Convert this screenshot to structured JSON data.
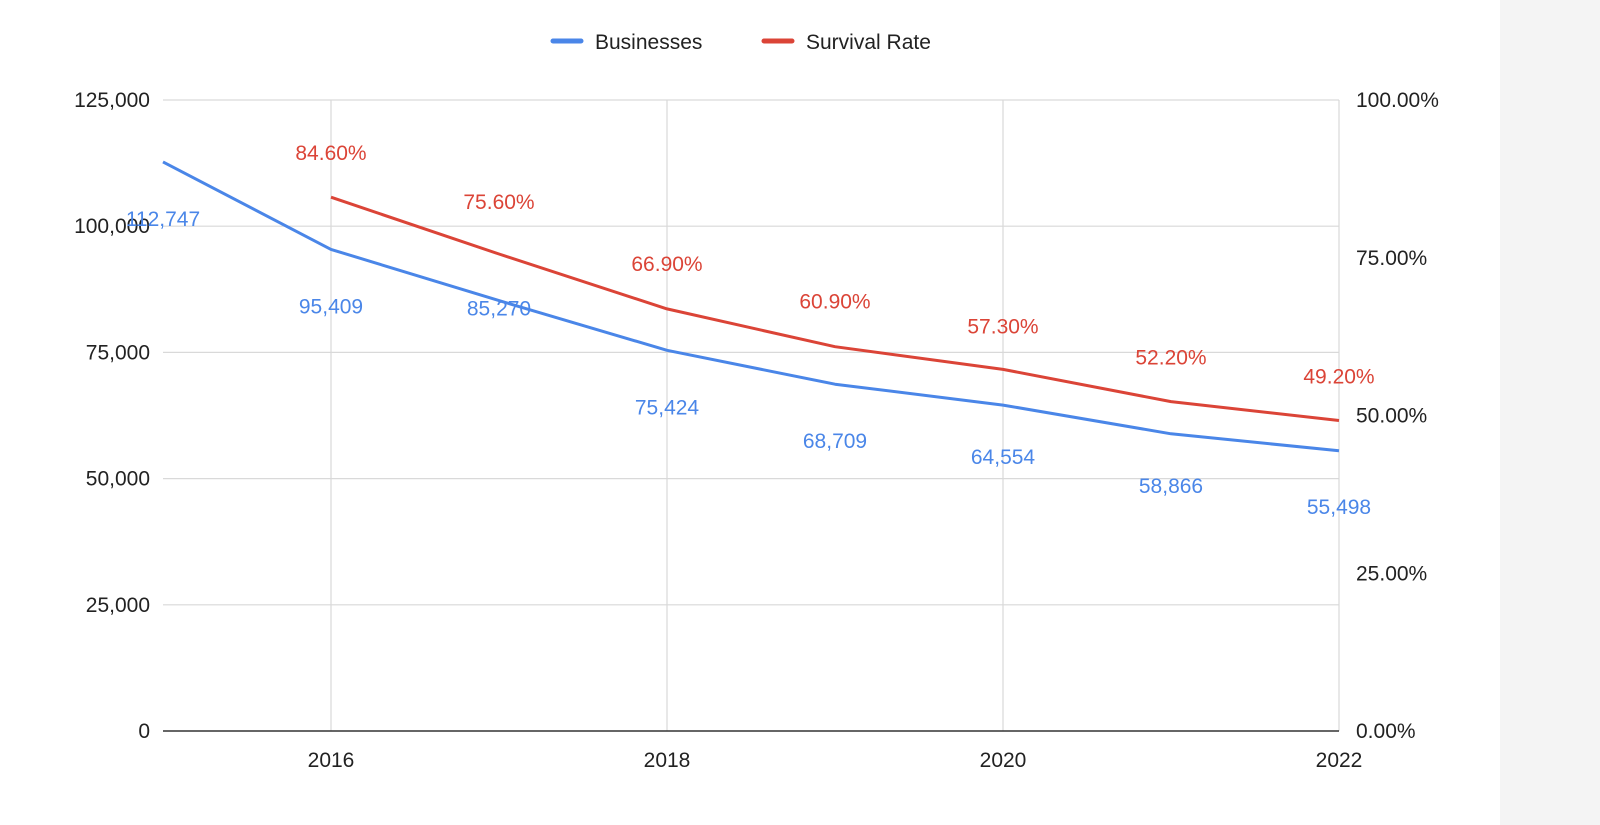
{
  "colors": {
    "businesses": "#4a86e8",
    "survival_rate": "#db4437",
    "grid": "#d9d9d9",
    "axis": "#333333"
  },
  "chart_data": {
    "type": "line",
    "title": "",
    "x": [
      2015,
      2016,
      2017,
      2018,
      2019,
      2020,
      2021,
      2022
    ],
    "xlim": [
      2015,
      2022
    ],
    "x_ticks": [
      "2016",
      "2018",
      "2020",
      "2022"
    ],
    "y_left": {
      "ylim": [
        0,
        125000
      ],
      "ticks": [
        "0",
        "25,000",
        "50,000",
        "75,000",
        "100,000",
        "125,000"
      ]
    },
    "y_right": {
      "ylim": [
        0,
        100
      ],
      "ticks": [
        "0.00%",
        "25.00%",
        "50.00%",
        "75.00%",
        "100.00%"
      ]
    },
    "grid": true,
    "legend": {
      "position": "top-center"
    },
    "series": [
      {
        "name": "Businesses",
        "axis": "left",
        "x": [
          2015,
          2016,
          2017,
          2018,
          2019,
          2020,
          2021,
          2022
        ],
        "values": [
          112747,
          95409,
          85270,
          75424,
          68709,
          64554,
          58866,
          55498
        ],
        "labels": [
          "112,747",
          "95,409",
          "85,270",
          "75,424",
          "68,709",
          "64,554",
          "58,866",
          "55,498"
        ]
      },
      {
        "name": "Survival Rate",
        "axis": "right",
        "x": [
          2016,
          2017,
          2018,
          2019,
          2020,
          2021,
          2022
        ],
        "values": [
          84.6,
          75.6,
          66.9,
          60.9,
          57.3,
          52.2,
          49.2
        ],
        "labels": [
          "84.60%",
          "75.60%",
          "66.90%",
          "60.90%",
          "57.30%",
          "52.20%",
          "49.20%"
        ]
      }
    ]
  }
}
